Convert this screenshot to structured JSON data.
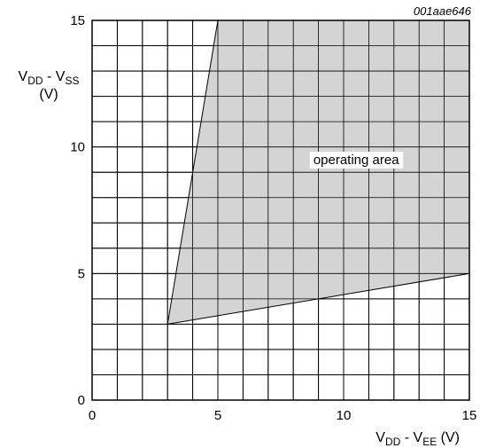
{
  "chart_data": {
    "type": "area",
    "figure_id": "001aae646",
    "xlabel": {
      "main": "V",
      "sub1": "DD",
      "mid": " - V",
      "sub2": "EE",
      "unit": " (V)"
    },
    "ylabel": {
      "main": "V",
      "sub1": "DD",
      "mid": " - V",
      "sub2": "SS",
      "unit": "(V)"
    },
    "xlim": [
      0,
      15
    ],
    "ylim": [
      0,
      15
    ],
    "xticks": [
      0,
      5,
      10,
      15
    ],
    "yticks": [
      0,
      5,
      10,
      15
    ],
    "grid": true,
    "grid_step": 1,
    "region": {
      "name": "operating area",
      "points": [
        [
          3,
          3
        ],
        [
          5,
          15
        ],
        [
          15,
          15
        ],
        [
          15,
          5
        ]
      ]
    },
    "annotation": {
      "text": "operating area",
      "x": 10.5,
      "y": 9.5
    }
  }
}
